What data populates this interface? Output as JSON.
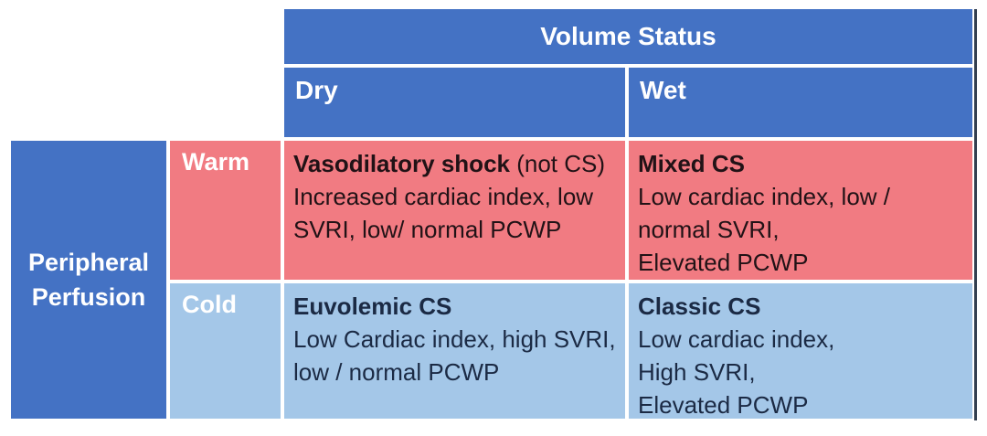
{
  "colors": {
    "header_blue": "#4472C4",
    "warm_pink": "#F17B82",
    "cold_blue": "#A4C7E8",
    "text_on_warm": "#211216",
    "text_on_cold": "#1B2A44",
    "right_border": "#333F50",
    "header_text": "#FFFFFF"
  },
  "matrix": {
    "column_group": {
      "label": "Volume Status"
    },
    "row_group": {
      "label": "Peripheral Perfusion"
    },
    "columns": [
      {
        "id": "dry",
        "label": "Dry"
      },
      {
        "id": "wet",
        "label": "Wet"
      }
    ],
    "rows": [
      {
        "id": "warm",
        "label": "Warm"
      },
      {
        "id": "cold",
        "label": "Cold"
      }
    ],
    "cells": [
      {
        "row": "Warm",
        "column": "Dry",
        "title": "Vasodilatory shock",
        "title_note": " (not CS)",
        "lines": [
          "Increased cardiac index, low",
          "SVRI, low/ normal PCWP"
        ]
      },
      {
        "row": "Warm",
        "column": "Wet",
        "title": "Mixed CS",
        "title_note": "",
        "lines": [
          "Low cardiac index, low /",
          "normal SVRI,",
          "Elevated PCWP"
        ]
      },
      {
        "row": "Cold",
        "column": "Dry",
        "title": "Euvolemic CS",
        "title_note": "",
        "lines": [
          "Low Cardiac index, high SVRI,",
          "low / normal PCWP"
        ]
      },
      {
        "row": "Cold",
        "column": "Wet",
        "title": "Classic CS",
        "title_note": "",
        "lines": [
          "Low cardiac index,",
          "High SVRI,",
          "Elevated PCWP"
        ]
      }
    ]
  }
}
